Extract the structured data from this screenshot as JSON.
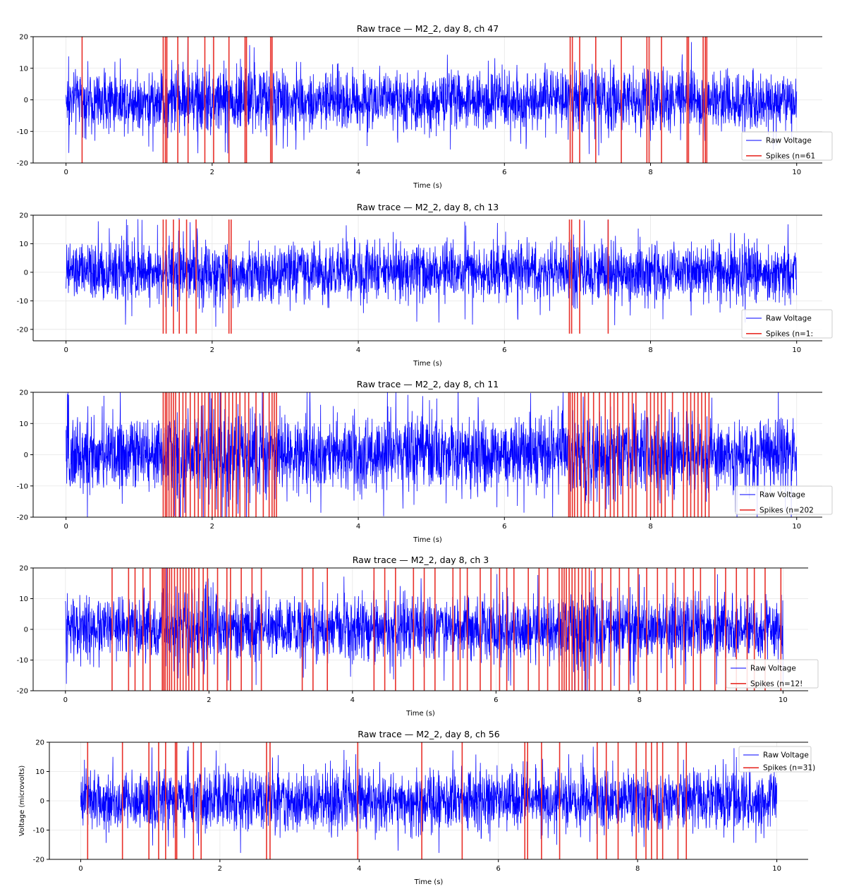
{
  "chart_data": [
    {
      "type": "line",
      "title": "Raw trace — M2_2, day 8, ch 47",
      "xlabel": "Time (s)",
      "ylabel": "",
      "xlim": [
        -0.45,
        10.35
      ],
      "ylim": [
        -20,
        20
      ],
      "xticks": [
        0,
        2,
        4,
        6,
        8,
        10
      ],
      "yticks": [
        20,
        10,
        0,
        -10,
        -20
      ],
      "grid": true,
      "legend_position": "lower-right",
      "series": [
        {
          "name": "Raw Voltage",
          "type": "line",
          "color": "#0000ff",
          "duration_s": 10,
          "amplitude_range": [
            -10,
            10
          ],
          "bursts": [
            {
              "start": 1.3,
              "end": 2.9,
              "amp": 12
            },
            {
              "start": 6.9,
              "end": 8.8,
              "amp": 11
            }
          ]
        },
        {
          "name": "Spikes (n=61",
          "type": "vlines",
          "color": "#e8302a",
          "ymin": -20,
          "ymax": 20,
          "times": [
            0.22,
            1.33,
            1.36,
            1.38,
            1.53,
            1.67,
            1.9,
            2.02,
            2.23,
            2.45,
            2.47,
            2.8,
            2.82,
            6.9,
            6.93,
            7.03,
            7.25,
            7.6,
            7.95,
            7.98,
            8.15,
            8.5,
            8.52,
            8.72,
            8.75,
            8.77
          ]
        }
      ]
    },
    {
      "type": "line",
      "title": "Raw trace — M2_2, day 8, ch 13",
      "xlabel": "Time (s)",
      "ylabel": "",
      "xlim": [
        -0.45,
        10.35
      ],
      "ylim": [
        -24,
        20
      ],
      "xticks": [
        0,
        2,
        4,
        6,
        8,
        10
      ],
      "yticks": [
        20,
        10,
        0,
        -10,
        -20
      ],
      "grid": true,
      "legend_position": "lower-right",
      "series": [
        {
          "name": "Raw Voltage",
          "type": "line",
          "color": "#0000ff",
          "duration_s": 10,
          "amplitude_range": [
            -11,
            11
          ],
          "bursts": [
            {
              "start": 1.35,
              "end": 2.3,
              "amp": 13
            },
            {
              "start": 6.9,
              "end": 7.1,
              "amp": 14
            }
          ]
        },
        {
          "name": "Spikes (n=1:",
          "type": "vlines",
          "color": "#e8302a",
          "ymin": -21.5,
          "ymax": 18.5,
          "times": [
            1.33,
            1.37,
            1.47,
            1.55,
            1.65,
            1.78,
            2.23,
            2.26,
            6.89,
            6.92,
            7.03,
            7.42
          ]
        }
      ]
    },
    {
      "type": "line",
      "title": "Raw trace — M2_2, day 8, ch 11",
      "xlabel": "Time (s)",
      "ylabel": "",
      "xlim": [
        -0.45,
        10.35
      ],
      "ylim": [
        -20,
        20
      ],
      "xticks": [
        0,
        2,
        4,
        6,
        8,
        10
      ],
      "yticks": [
        20,
        10,
        0,
        -10,
        -20
      ],
      "grid": true,
      "legend_position": "lower-right",
      "series": [
        {
          "name": "Raw Voltage",
          "type": "line",
          "color": "#0000ff",
          "duration_s": 10,
          "amplitude_range": [
            -13,
            13
          ],
          "bursts": [
            {
              "start": 1.3,
              "end": 2.9,
              "amp": 16
            },
            {
              "start": 6.9,
              "end": 8.85,
              "amp": 15
            }
          ]
        },
        {
          "name": "Spikes (n=202",
          "type": "vlines",
          "color": "#e8302a",
          "ymin": -20,
          "ymax": 20,
          "times": [
            1.33,
            1.36,
            1.38,
            1.41,
            1.44,
            1.47,
            1.5,
            1.55,
            1.6,
            1.64,
            1.7,
            1.76,
            1.81,
            1.86,
            1.9,
            1.95,
            2.0,
            2.04,
            2.08,
            2.12,
            2.18,
            2.23,
            2.28,
            2.33,
            2.38,
            2.45,
            2.5,
            2.6,
            2.7,
            2.78,
            2.82,
            2.85,
            2.88,
            6.88,
            6.9,
            6.93,
            6.96,
            7.0,
            7.05,
            7.1,
            7.15,
            7.22,
            7.3,
            7.38,
            7.45,
            7.5,
            7.55,
            7.62,
            7.7,
            7.75,
            7.8,
            7.95,
            8.0,
            8.05,
            8.1,
            8.15,
            8.2,
            8.3,
            8.45,
            8.5,
            8.55,
            8.6,
            8.65,
            8.7,
            8.75,
            8.8
          ]
        }
      ]
    },
    {
      "type": "line",
      "title": "Raw trace — M2_2, day 8, ch 3",
      "xlabel": "Time (s)",
      "ylabel": "",
      "xlim": [
        -0.45,
        10.35
      ],
      "ylim": [
        -20,
        20
      ],
      "xticks": [
        0,
        2,
        4,
        6,
        8,
        10
      ],
      "yticks": [
        20,
        10,
        0,
        -10,
        -20
      ],
      "grid": true,
      "legend_position": "lower-right",
      "series": [
        {
          "name": "Raw Voltage",
          "type": "line",
          "color": "#0000ff",
          "duration_s": 10,
          "amplitude_range": [
            -11,
            11
          ],
          "bursts": [
            {
              "start": 1.3,
              "end": 2.0,
              "amp": 14
            },
            {
              "start": 6.9,
              "end": 7.5,
              "amp": 14
            }
          ]
        },
        {
          "name": "Spikes (n=12!",
          "type": "vlines",
          "color": "#e8302a",
          "ymin": -20,
          "ymax": 20,
          "times": [
            0.65,
            0.88,
            0.97,
            1.08,
            1.18,
            1.35,
            1.37,
            1.39,
            1.42,
            1.45,
            1.48,
            1.52,
            1.56,
            1.6,
            1.64,
            1.68,
            1.72,
            1.76,
            1.8,
            1.86,
            1.92,
            1.98,
            2.12,
            2.25,
            2.3,
            2.45,
            2.6,
            2.73,
            3.3,
            3.45,
            3.65,
            4.3,
            4.45,
            4.6,
            4.85,
            5.0,
            5.15,
            5.4,
            5.5,
            5.6,
            5.78,
            5.93,
            6.05,
            6.15,
            6.25,
            6.45,
            6.6,
            6.72,
            6.88,
            6.92,
            6.95,
            6.98,
            7.02,
            7.06,
            7.1,
            7.15,
            7.2,
            7.25,
            7.3,
            7.38,
            7.48,
            7.6,
            7.72,
            7.85,
            7.98,
            8.1,
            8.25,
            8.38,
            8.5,
            8.62,
            8.75,
            8.85,
            9.05,
            9.2,
            9.35,
            9.5,
            9.6,
            9.75,
            9.97
          ]
        }
      ]
    },
    {
      "type": "line",
      "title": "Raw trace — M2_2, day 8, ch 56",
      "xlabel": "Time (s)",
      "ylabel": "Voltage (microvolts)",
      "xlim": [
        -0.45,
        10.45
      ],
      "ylim": [
        -20,
        20
      ],
      "xticks": [
        0,
        2,
        4,
        6,
        8,
        10
      ],
      "yticks": [
        20,
        10,
        0,
        -10,
        -20
      ],
      "grid": true,
      "legend_position": "upper-right",
      "series": [
        {
          "name": "Raw Voltage",
          "type": "line",
          "color": "#0000ff",
          "duration_s": 10,
          "amplitude_range": [
            -11,
            11
          ],
          "bursts": []
        },
        {
          "name": "Spikes (n=31)",
          "type": "vlines",
          "color": "#e8302a",
          "ymin": -20,
          "ymax": 20,
          "times": [
            0.1,
            0.6,
            0.98,
            1.12,
            1.22,
            1.36,
            1.38,
            1.62,
            1.73,
            2.67,
            2.72,
            3.98,
            4.9,
            5.48,
            6.38,
            6.42,
            6.62,
            6.88,
            7.42,
            7.55,
            7.72,
            7.98,
            8.12,
            8.2,
            8.28,
            8.36,
            8.58,
            8.7
          ]
        }
      ]
    }
  ]
}
